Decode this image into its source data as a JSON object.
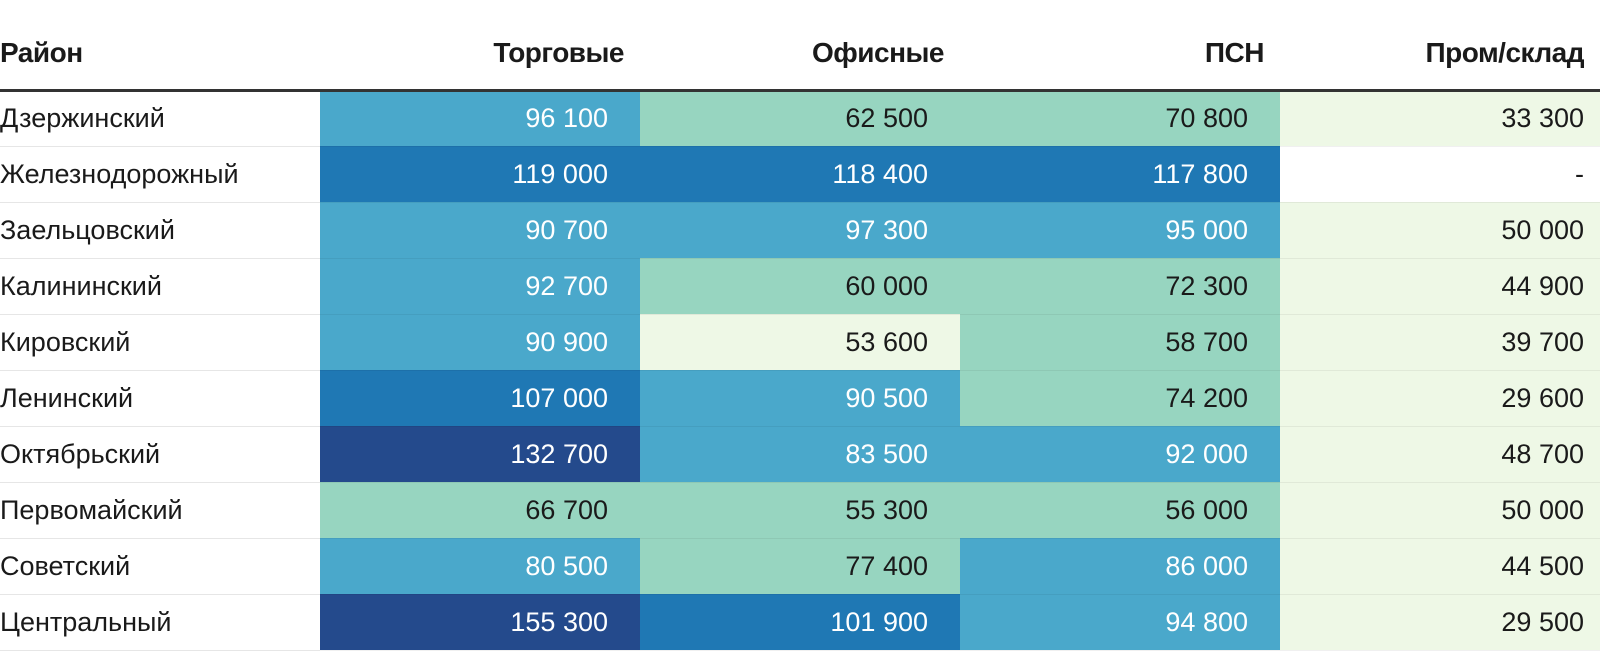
{
  "chart_data": {
    "type": "table",
    "columns": [
      "Район",
      "Торговые",
      "Офисные",
      "ПСН",
      "Пром/склад"
    ],
    "rows": [
      {
        "district": "Дзержинский",
        "values": [
          96100,
          62500,
          70800,
          33300
        ],
        "display": [
          "96 100",
          "62 500",
          "70 800",
          "33 300"
        ]
      },
      {
        "district": "Железнодорожный",
        "values": [
          119000,
          118400,
          117800,
          null
        ],
        "display": [
          "119 000",
          "118 400",
          "117 800",
          "-"
        ]
      },
      {
        "district": "Заельцовский",
        "values": [
          90700,
          97300,
          95000,
          50000
        ],
        "display": [
          "90 700",
          "97 300",
          "95 000",
          "50 000"
        ]
      },
      {
        "district": "Калининский",
        "values": [
          92700,
          60000,
          72300,
          44900
        ],
        "display": [
          "92 700",
          "60 000",
          "72 300",
          "44 900"
        ]
      },
      {
        "district": "Кировский",
        "values": [
          90900,
          53600,
          58700,
          39700
        ],
        "display": [
          "90 900",
          "53 600",
          "58 700",
          "39 700"
        ]
      },
      {
        "district": "Ленинский",
        "values": [
          107000,
          90500,
          74200,
          29600
        ],
        "display": [
          "107 000",
          "90 500",
          "74 200",
          "29 600"
        ]
      },
      {
        "district": "Октябрьский",
        "values": [
          132700,
          83500,
          92000,
          48700
        ],
        "display": [
          "132 700",
          "83 500",
          "92 000",
          "48 700"
        ]
      },
      {
        "district": "Первомайский",
        "values": [
          66700,
          55300,
          56000,
          50000
        ],
        "display": [
          "66 700",
          "55 300",
          "56 000",
          "50 000"
        ]
      },
      {
        "district": "Советский",
        "values": [
          80500,
          77400,
          86000,
          44500
        ],
        "display": [
          "80 500",
          "77 400",
          "86 000",
          "44 500"
        ]
      },
      {
        "district": "Центральный",
        "values": [
          155300,
          101900,
          94800,
          29500
        ],
        "display": [
          "155 300",
          "101 900",
          "94 800",
          "29 500"
        ]
      }
    ],
    "color_scale": {
      "thresholds": [
        0,
        55000,
        78000,
        100000,
        125000
      ],
      "colors": [
        "#eef8e6",
        "#97d5c0",
        "#4aa8cb",
        "#1f78b4",
        "#244a8c"
      ],
      "text_colors": [
        "#1a1a1a",
        "#1a1a1a",
        "#ffffff",
        "#ffffff",
        "#ffffff"
      ],
      "missing_color": "#ffffff"
    }
  }
}
